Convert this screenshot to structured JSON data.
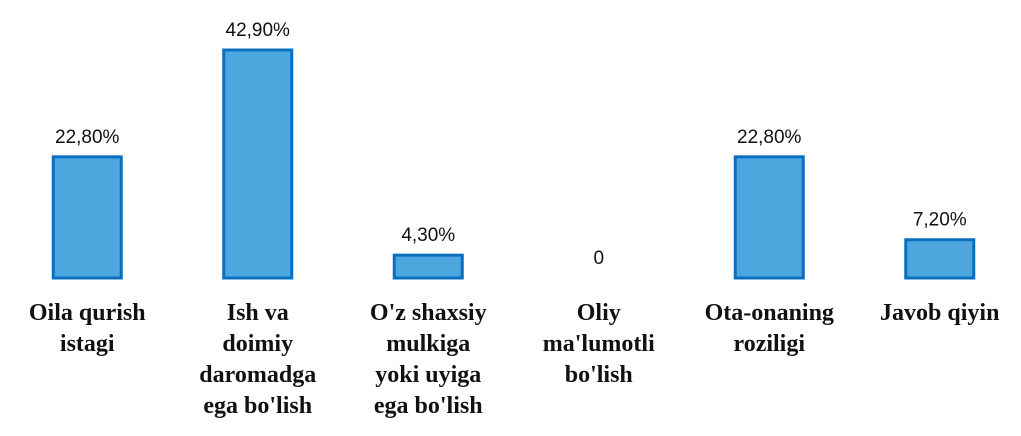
{
  "chart_data": {
    "type": "bar",
    "categories": [
      "Oila qurish\nistagi",
      "Ish va\ndoimiy\ndaromadga\nega bo'lish",
      "O'z shaxsiy\nmulkiga\nyoki uyiga\nega bo'lish",
      "Oliy\nma'lumotli\nbo'lish",
      "Ota-onaning\nroziligi",
      "Javob qiyin"
    ],
    "values": [
      22.8,
      42.9,
      4.3,
      0,
      22.8,
      7.2
    ],
    "value_labels": [
      "22,80%",
      "42,90%",
      "4,30%",
      "0",
      "22,80%",
      "7,20%"
    ],
    "color": "#4ea6df"
  }
}
